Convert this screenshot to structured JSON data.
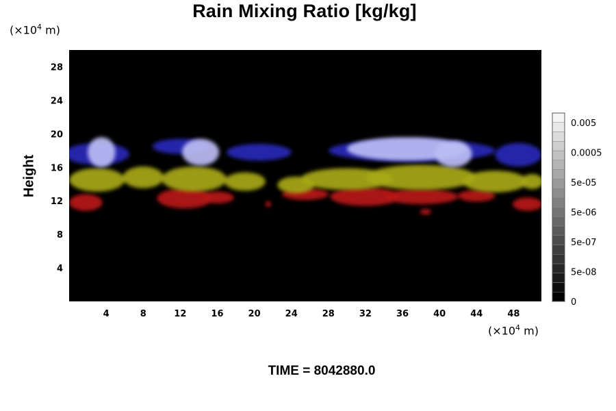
{
  "header": {
    "title": "Rain Mixing Ratio [kg/kg]",
    "y_unit_prefix": "(×10",
    "y_unit_exp": "4",
    "y_unit_suffix": " m)",
    "x_unit_prefix": "(×10",
    "x_unit_exp": "4",
    "x_unit_suffix": " m)"
  },
  "footer": {
    "time_label": "TIME = 8042880.0"
  },
  "chart_data": {
    "type": "heatmap",
    "title": "Rain Mixing Ratio [kg/kg]",
    "xlabel": "",
    "ylabel": "Height",
    "xlim": [
      0,
      51
    ],
    "ylim": [
      0,
      30
    ],
    "x_ticks": [
      4,
      8,
      12,
      16,
      20,
      24,
      28,
      32,
      36,
      40,
      44,
      48
    ],
    "y_ticks": [
      4,
      8,
      12,
      16,
      20,
      24,
      28
    ],
    "grid": false,
    "background_color": "#000000",
    "colorbar": {
      "placement": "right",
      "labels": [
        "0",
        "5e-08",
        "5e-07",
        "5e-06",
        "5e-05",
        "0.0005",
        "0.005"
      ],
      "color_low": "#000000",
      "color_high": "#ffffff"
    },
    "layers": [
      {
        "color": "#bcbcf4",
        "blobs": [
          {
            "cx": 3.5,
            "cy": 17.8,
            "rx": 1.5,
            "ry": 1.8
          },
          {
            "cx": 14.2,
            "cy": 17.8,
            "rx": 2.0,
            "ry": 1.6
          },
          {
            "cx": 36.5,
            "cy": 18.2,
            "rx": 6.5,
            "ry": 1.4
          },
          {
            "cx": 41.5,
            "cy": 17.6,
            "rx": 2.0,
            "ry": 1.6
          }
        ]
      },
      {
        "color": "#2828b8",
        "blobs": [
          {
            "cx": 3.0,
            "cy": 17.6,
            "rx": 3.5,
            "ry": 1.3
          },
          {
            "cx": 12.0,
            "cy": 18.5,
            "rx": 3.0,
            "ry": 0.9
          },
          {
            "cx": 20.5,
            "cy": 17.8,
            "rx": 3.5,
            "ry": 1.0
          },
          {
            "cx": 37.0,
            "cy": 18.0,
            "rx": 9.0,
            "ry": 1.3
          },
          {
            "cx": 48.5,
            "cy": 17.5,
            "rx": 2.5,
            "ry": 1.4
          }
        ]
      },
      {
        "color": "#a8a818",
        "blobs": [
          {
            "cx": 3.0,
            "cy": 14.5,
            "rx": 3.0,
            "ry": 1.4
          },
          {
            "cx": 8.0,
            "cy": 14.8,
            "rx": 2.2,
            "ry": 1.3
          },
          {
            "cx": 13.5,
            "cy": 14.6,
            "rx": 3.5,
            "ry": 1.5
          },
          {
            "cx": 19.0,
            "cy": 14.3,
            "rx": 2.2,
            "ry": 1.1
          },
          {
            "cx": 24.5,
            "cy": 13.9,
            "rx": 2.0,
            "ry": 1.0
          },
          {
            "cx": 30.0,
            "cy": 14.6,
            "rx": 5.0,
            "ry": 1.3
          },
          {
            "cx": 38.0,
            "cy": 14.8,
            "rx": 6.0,
            "ry": 1.5
          },
          {
            "cx": 46.0,
            "cy": 14.3,
            "rx": 3.5,
            "ry": 1.3
          },
          {
            "cx": 50.0,
            "cy": 14.3,
            "rx": 1.2,
            "ry": 0.9
          }
        ]
      },
      {
        "color": "#b81414",
        "blobs": [
          {
            "cx": 1.8,
            "cy": 11.8,
            "rx": 1.8,
            "ry": 1.0
          },
          {
            "cx": 12.5,
            "cy": 12.3,
            "rx": 3.0,
            "ry": 1.2
          },
          {
            "cx": 16.0,
            "cy": 12.4,
            "rx": 1.8,
            "ry": 0.7
          },
          {
            "cx": 21.5,
            "cy": 11.6,
            "rx": 0.3,
            "ry": 0.35
          },
          {
            "cx": 25.5,
            "cy": 12.8,
            "rx": 2.5,
            "ry": 0.7
          },
          {
            "cx": 32.0,
            "cy": 12.5,
            "rx": 3.8,
            "ry": 1.1
          },
          {
            "cx": 38.0,
            "cy": 12.5,
            "rx": 4.0,
            "ry": 0.9
          },
          {
            "cx": 38.5,
            "cy": 10.7,
            "rx": 0.6,
            "ry": 0.35
          },
          {
            "cx": 44.0,
            "cy": 12.6,
            "rx": 2.0,
            "ry": 0.7
          },
          {
            "cx": 49.5,
            "cy": 11.6,
            "rx": 1.6,
            "ry": 0.8
          }
        ]
      }
    ]
  }
}
